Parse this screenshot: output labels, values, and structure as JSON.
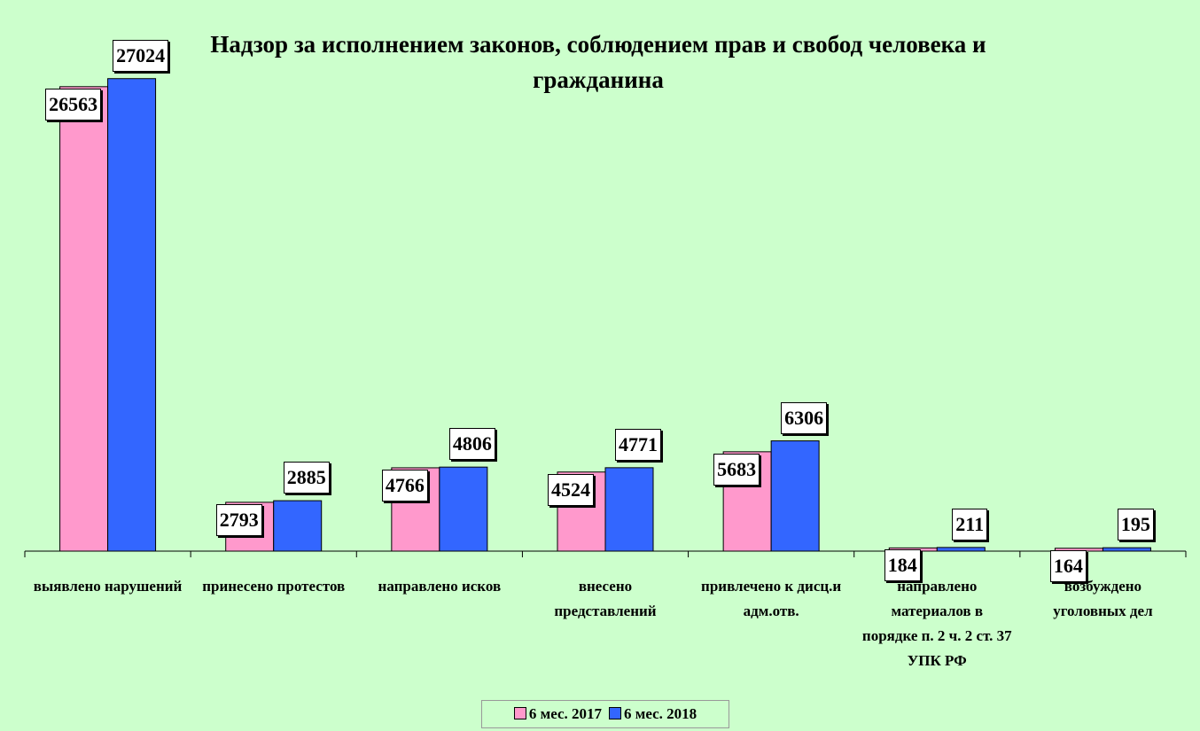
{
  "chart_data": {
    "type": "bar",
    "title": "Надзор за исполнением законов, соблюдением прав и свобод человека и гражданина",
    "categories": [
      "выявлено нарушений",
      "принесено протестов",
      "направлено исков",
      "внесено представлений",
      "привлечено к дисц.и адм.отв.",
      "направлено материалов в порядке п. 2 ч. 2 ст. 37 УПК РФ",
      "возбуждено уголовных дел"
    ],
    "series": [
      {
        "name": "6 мес. 2017",
        "color": "#ff99cc",
        "values": [
          26563,
          2793,
          4766,
          4524,
          5683,
          184,
          164
        ]
      },
      {
        "name": "6 мес. 2018",
        "color": "#3366ff",
        "values": [
          27024,
          2885,
          4806,
          4771,
          6306,
          211,
          195
        ]
      }
    ],
    "ylim": [
      0,
      30000
    ],
    "legend": "bottom"
  }
}
